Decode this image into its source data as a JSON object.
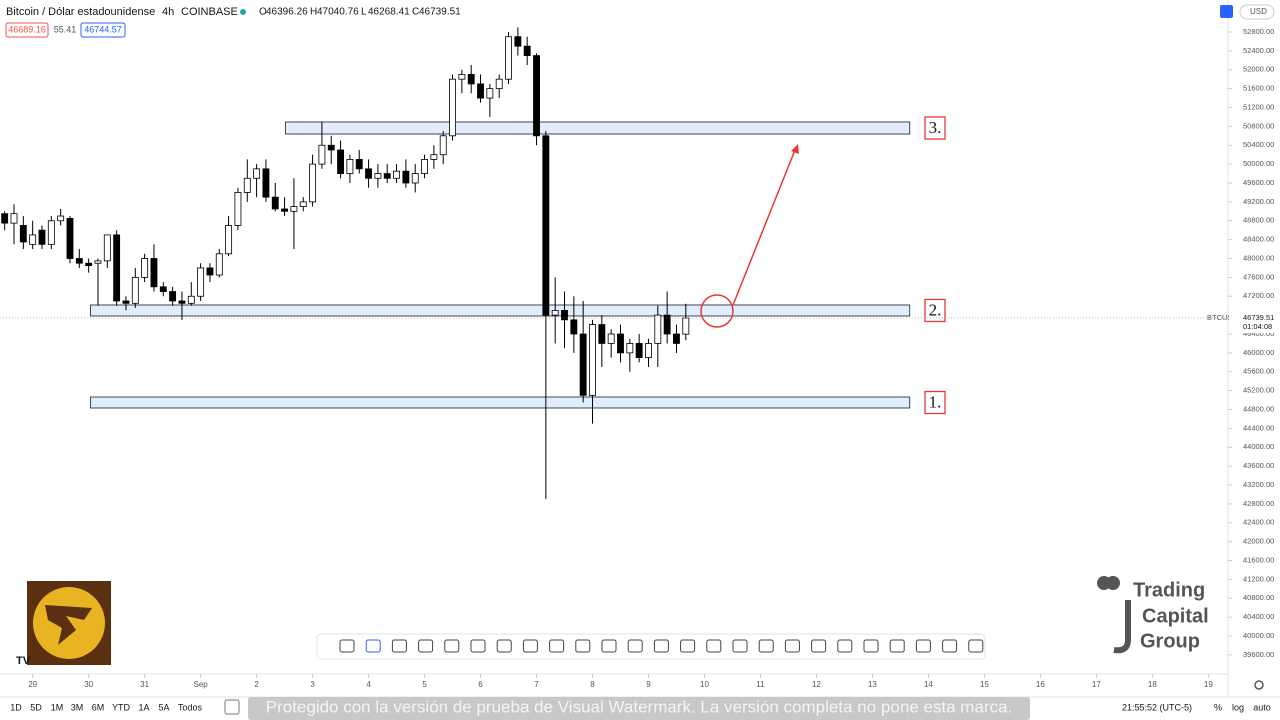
{
  "header": {
    "symbol": "Bitcoin / Dólar estadounidense",
    "interval": "4h",
    "exchange": "COINBASE",
    "ohlc_labels": [
      "O",
      "H",
      "L",
      "C"
    ],
    "badges": [
      46689.16,
      55.41,
      46744.57
    ]
  },
  "chart_data": {
    "type": "candlestick",
    "open": [
      48950,
      48750,
      48700,
      48300,
      48600,
      48300,
      48800,
      48850,
      48000,
      47900,
      47900,
      47950,
      48500,
      47100,
      47050,
      47600,
      48000,
      47400,
      47300,
      47100,
      47050,
      47200,
      47800,
      47650,
      48100,
      48700,
      49400,
      49700,
      49900,
      49300,
      49050,
      49000,
      49100,
      49200,
      50000,
      50400,
      50300,
      49800,
      50100,
      49900,
      49700,
      49800,
      49700,
      49850,
      49600,
      49800,
      50100,
      50200,
      50600,
      51800,
      51900,
      51700,
      51400,
      51600,
      51800,
      52700,
      52500,
      52300,
      50600,
      46800,
      46900,
      46700,
      46400,
      45100,
      46600,
      46200,
      46400,
      46000,
      46200,
      45900,
      46200,
      46800,
      46400,
      46396.26
    ],
    "high": [
      49000,
      49150,
      48900,
      48800,
      48700,
      48900,
      49050,
      48900,
      48200,
      48000,
      48000,
      48500,
      48600,
      47200,
      47800,
      48100,
      48300,
      47500,
      47400,
      47300,
      47500,
      47900,
      47900,
      48200,
      48900,
      49500,
      50100,
      50000,
      50100,
      49600,
      49300,
      49700,
      49300,
      50200,
      50900,
      50600,
      50500,
      50200,
      50300,
      50100,
      50000,
      50000,
      50000,
      50100,
      50000,
      50200,
      50400,
      50700,
      51900,
      52000,
      52100,
      51900,
      51700,
      51900,
      52800,
      52900,
      52700,
      52350,
      50700,
      47600,
      47300,
      47200,
      47100,
      46700,
      46800,
      46500,
      46600,
      46300,
      46400,
      46300,
      47000,
      47300,
      46600,
      47040.76
    ],
    "low": [
      48600,
      48300,
      48200,
      48200,
      48200,
      48200,
      48700,
      47900,
      47800,
      47700,
      47000,
      47800,
      47000,
      46900,
      46950,
      47500,
      47300,
      47200,
      47000,
      46700,
      47000,
      47100,
      47500,
      47600,
      48050,
      48600,
      49200,
      49300,
      49200,
      49000,
      48900,
      48200,
      49000,
      49100,
      49900,
      50000,
      49700,
      49600,
      49800,
      49500,
      49500,
      49600,
      49600,
      49500,
      49400,
      49700,
      49900,
      50000,
      50500,
      51500,
      51500,
      51300,
      51000,
      51400,
      51700,
      52300,
      52100,
      50400,
      42900,
      46200,
      46100,
      46000,
      44950,
      44500,
      45700,
      45900,
      45800,
      45600,
      45800,
      45700,
      45700,
      46200,
      46000,
      46268.41
    ],
    "close": [
      48750,
      48950,
      48350,
      48500,
      48300,
      48800,
      48900,
      48000,
      47900,
      47850,
      47950,
      48500,
      47100,
      47050,
      47600,
      48000,
      47400,
      47300,
      47100,
      47050,
      47200,
      47800,
      47650,
      48100,
      48700,
      49400,
      49700,
      49900,
      49300,
      49050,
      49000,
      49100,
      49200,
      50000,
      50400,
      50300,
      49800,
      50100,
      49900,
      49700,
      49800,
      49700,
      49850,
      49600,
      49800,
      50100,
      50200,
      50600,
      51800,
      51900,
      51700,
      51400,
      51600,
      51800,
      52700,
      52500,
      52300,
      50600,
      46800,
      46900,
      46700,
      46400,
      45100,
      46600,
      46200,
      46400,
      46000,
      46200,
      45900,
      46200,
      46800,
      46400,
      46200,
      46739.51
    ],
    "color_up": "#ffffff",
    "color_down": "#000000",
    "xlim": [
      -0.5,
      131
    ],
    "xticks": [
      {
        "value": 3,
        "label": "29"
      },
      {
        "value": 9,
        "label": "30"
      },
      {
        "value": 15,
        "label": "31"
      },
      {
        "value": 21,
        "label": "Sep"
      },
      {
        "value": 27,
        "label": "2"
      },
      {
        "value": 33,
        "label": "3"
      },
      {
        "value": 39,
        "label": "4"
      },
      {
        "value": 45,
        "label": "5"
      },
      {
        "value": 51,
        "label": "6"
      },
      {
        "value": 57,
        "label": "7"
      },
      {
        "value": 63,
        "label": "8"
      },
      {
        "value": 69,
        "label": "9"
      },
      {
        "value": 75,
        "label": "10"
      },
      {
        "value": 81,
        "label": "11"
      },
      {
        "value": 87,
        "label": "12"
      },
      {
        "value": 93,
        "label": "13"
      },
      {
        "value": 99,
        "label": "14"
      },
      {
        "value": 105,
        "label": "15"
      },
      {
        "value": 111,
        "label": "16"
      },
      {
        "value": 117,
        "label": "17"
      },
      {
        "value": 123,
        "label": "18"
      },
      {
        "value": 129,
        "label": "19"
      }
    ],
    "ylim": [
      38856,
      53478
    ],
    "yticks": [
      {
        "value": 52800,
        "label": "52800.00"
      },
      {
        "value": 52400,
        "label": "52400.00"
      },
      {
        "value": 52000,
        "label": "52000.00"
      },
      {
        "value": 51600,
        "label": "51600.00"
      },
      {
        "value": 51200,
        "label": "51200.00"
      },
      {
        "value": 50800,
        "label": "50800.00"
      },
      {
        "value": 50400,
        "label": "50400.00"
      },
      {
        "value": 50000,
        "label": "50000.00"
      },
      {
        "value": 49600,
        "label": "49600.00"
      },
      {
        "value": 49200,
        "label": "49200.00"
      },
      {
        "value": 48800,
        "label": "48800.00"
      },
      {
        "value": 48400,
        "label": "48400.00"
      },
      {
        "value": 48000,
        "label": "48000.00"
      },
      {
        "value": 47600,
        "label": "47600.00"
      },
      {
        "value": 47200,
        "label": "47200.00"
      },
      {
        "value": 46400,
        "label": "46400.00"
      },
      {
        "value": 46000,
        "label": "46000.00"
      },
      {
        "value": 45600,
        "label": "45600.00"
      },
      {
        "value": 45200,
        "label": "45200.00"
      },
      {
        "value": 44800,
        "label": "44800.00"
      },
      {
        "value": 44400,
        "label": "44400.00"
      },
      {
        "value": 44000,
        "label": "44000.00"
      },
      {
        "value": 43600,
        "label": "43600.00"
      },
      {
        "value": 43200,
        "label": "43200.00"
      },
      {
        "value": 42800,
        "label": "42800.00"
      },
      {
        "value": 42400,
        "label": "42400.00"
      },
      {
        "value": 42000,
        "label": "42000.00"
      },
      {
        "value": 41600,
        "label": "41600.00"
      },
      {
        "value": 41200,
        "label": "41200.00"
      },
      {
        "value": 40800,
        "label": "40800.00"
      },
      {
        "value": 40400,
        "label": "40400.00"
      },
      {
        "value": 40000,
        "label": "40000.00"
      },
      {
        "value": 39600,
        "label": "39600.00"
      }
    ],
    "zones": [
      {
        "label": "3.",
        "top": 50893,
        "bottom": 50638,
        "start": 30.1,
        "end": 97
      },
      {
        "label": "2.",
        "top": 47015,
        "bottom": 46782,
        "start": 9.2,
        "end": 97
      },
      {
        "label": "1.",
        "top": 45065,
        "bottom": 44832,
        "start": 9.2,
        "end": 97
      }
    ],
    "symbol_tag": "BTCUSD",
    "countdown": "01:04:08"
  },
  "price_axis": {
    "currency": "USD"
  },
  "ranges": [
    "1D",
    "5D",
    "1M",
    "3M",
    "6M",
    "YTD",
    "1A",
    "5A",
    "Todos"
  ],
  "footer": {
    "time": "21:55:52 (UTC-5)",
    "percent": "%",
    "log": "log",
    "auto": "auto"
  },
  "watermark": "Protegido con la versión de prueba de Visual Watermark. La versión completa no pone esta marca.",
  "logo": [
    "Trading",
    "Capital",
    "Group"
  ]
}
